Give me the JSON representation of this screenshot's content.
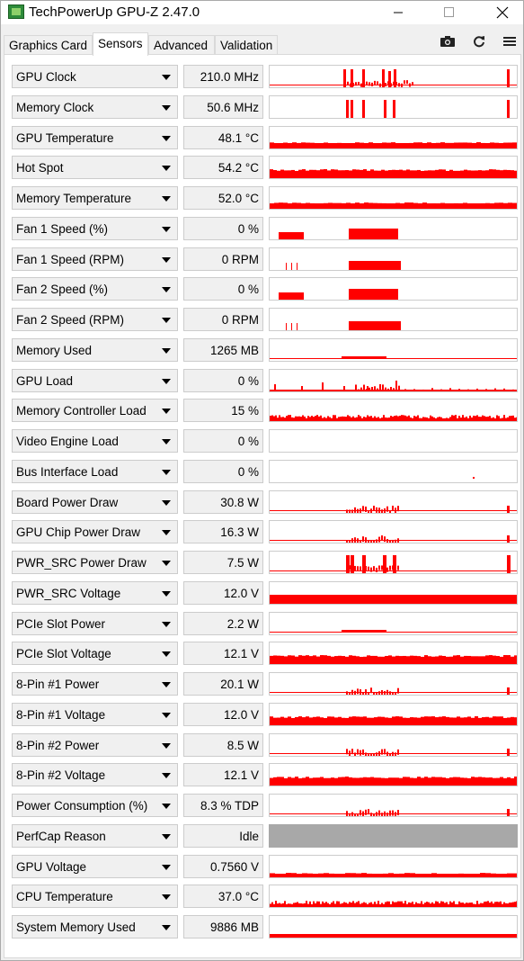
{
  "window": {
    "title": "TechPowerUp GPU-Z 2.47.0"
  },
  "tabs": [
    {
      "label": "Graphics Card",
      "active": false
    },
    {
      "label": "Sensors",
      "active": true
    },
    {
      "label": "Advanced",
      "active": false
    },
    {
      "label": "Validation",
      "active": false
    }
  ],
  "toolbar": {
    "icons": [
      "camera-icon",
      "refresh-icon",
      "menu-icon"
    ]
  },
  "colors": {
    "graph_fill": "#ff0000",
    "graph_idle": "#a8a8a8"
  },
  "sensors": [
    {
      "name": "GPU Clock",
      "value": "210.0 MHz",
      "graph": "spikes-sparse"
    },
    {
      "name": "Memory Clock",
      "value": "50.6 MHz",
      "graph": "spikes-tall"
    },
    {
      "name": "GPU Temperature",
      "value": "48.1 °C",
      "graph": "band-mid"
    },
    {
      "name": "Hot Spot",
      "value": "54.2 °C",
      "graph": "band-high"
    },
    {
      "name": "Memory Temperature",
      "value": "52.0 °C",
      "graph": "band-mid"
    },
    {
      "name": "Fan 1 Speed (%)",
      "value": "0 %",
      "graph": "fan-pct"
    },
    {
      "name": "Fan 1 Speed (RPM)",
      "value": "0 RPM",
      "graph": "fan-rpm"
    },
    {
      "name": "Fan 2 Speed (%)",
      "value": "0 %",
      "graph": "fan-pct"
    },
    {
      "name": "Fan 2 Speed (RPM)",
      "value": "0 RPM",
      "graph": "fan-rpm"
    },
    {
      "name": "Memory Used",
      "value": "1265 MB",
      "graph": "line-low"
    },
    {
      "name": "GPU Load",
      "value": "0 %",
      "graph": "load-noise"
    },
    {
      "name": "Memory Controller Load",
      "value": "15 %",
      "graph": "mc-noise"
    },
    {
      "name": "Video Engine Load",
      "value": "0 %",
      "graph": "empty"
    },
    {
      "name": "Bus Interface Load",
      "value": "0 %",
      "graph": "dot"
    },
    {
      "name": "Board Power Draw",
      "value": "30.8 W",
      "graph": "power-low"
    },
    {
      "name": "GPU Chip Power Draw",
      "value": "16.3 W",
      "graph": "power-low"
    },
    {
      "name": "PWR_SRC Power Draw",
      "value": "7.5 W",
      "graph": "power-spikes"
    },
    {
      "name": "PWR_SRC Voltage",
      "value": "12.0 V",
      "graph": "full"
    },
    {
      "name": "PCIe Slot Power",
      "value": "2.2 W",
      "graph": "line-low"
    },
    {
      "name": "PCIe Slot Voltage",
      "value": "12.1 V",
      "graph": "band-high"
    },
    {
      "name": "8-Pin #1 Power",
      "value": "20.1 W",
      "graph": "power-low"
    },
    {
      "name": "8-Pin #1 Voltage",
      "value": "12.0 V",
      "graph": "band-high"
    },
    {
      "name": "8-Pin #2 Power",
      "value": "8.5 W",
      "graph": "power-low"
    },
    {
      "name": "8-Pin #2 Voltage",
      "value": "12.1 V",
      "graph": "band-high"
    },
    {
      "name": "Power Consumption (%)",
      "value": "8.3 % TDP",
      "graph": "power-low"
    },
    {
      "name": "PerfCap Reason",
      "value": "Idle",
      "graph": "idle"
    },
    {
      "name": "GPU Voltage",
      "value": "0.7560 V",
      "graph": "band-low"
    },
    {
      "name": "CPU Temperature",
      "value": "37.0 °C",
      "graph": "mc-noise"
    },
    {
      "name": "System Memory Used",
      "value": "9886 MB",
      "graph": "band-thin"
    }
  ]
}
